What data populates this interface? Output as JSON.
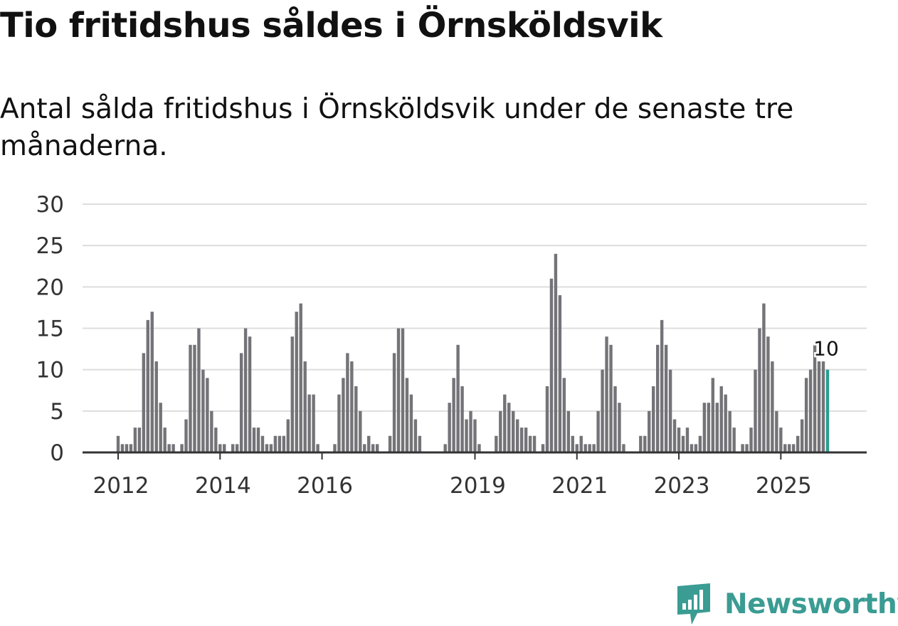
{
  "title": "Tio fritidshus såldes i Örnsköldsvik",
  "subtitle": "Antal sålda fritidshus i Örnsköldsvik under de senaste tre månaderna.",
  "brand": {
    "name": "Newsworthy",
    "color": "#3a9c93"
  },
  "chart_data": {
    "type": "bar",
    "title": "Tio fritidshus såldes i Örnsköldsvik",
    "xlabel": "",
    "ylabel": "",
    "ylim": [
      0,
      30
    ],
    "yticks": [
      0,
      5,
      10,
      15,
      20,
      25,
      30
    ],
    "grid": true,
    "xtick_labels": [
      {
        "label": "2012",
        "index": 0
      },
      {
        "label": "2014",
        "index": 24
      },
      {
        "label": "2016",
        "index": 48
      },
      {
        "label": "2019",
        "index": 84
      },
      {
        "label": "2021",
        "index": 108
      },
      {
        "label": "2023",
        "index": 132
      },
      {
        "label": "2025",
        "index": 156
      }
    ],
    "series": [
      {
        "name": "Antal sålda fritidshus",
        "start": "2012-01",
        "frequency": "monthly",
        "values": [
          2,
          1,
          1,
          1,
          3,
          3,
          12,
          16,
          17,
          11,
          6,
          3,
          1,
          1,
          0,
          1,
          4,
          13,
          13,
          15,
          10,
          9,
          5,
          3,
          1,
          1,
          0,
          1,
          1,
          12,
          15,
          14,
          3,
          3,
          2,
          1,
          1,
          2,
          2,
          2,
          4,
          14,
          17,
          18,
          11,
          7,
          7,
          1,
          0,
          0,
          0,
          1,
          7,
          9,
          12,
          11,
          8,
          5,
          1,
          2,
          1,
          1,
          0,
          0,
          2,
          12,
          15,
          15,
          9,
          7,
          4,
          2,
          0,
          0,
          0,
          0,
          0,
          1,
          6,
          9,
          13,
          8,
          4,
          5,
          4,
          1,
          0,
          0,
          0,
          2,
          5,
          7,
          6,
          5,
          4,
          3,
          3,
          2,
          2,
          0,
          1,
          8,
          21,
          24,
          19,
          9,
          5,
          2,
          1,
          2,
          1,
          1,
          1,
          5,
          10,
          14,
          13,
          8,
          6,
          1,
          0,
          0,
          0,
          2,
          2,
          5,
          8,
          13,
          16,
          13,
          10,
          4,
          3,
          2,
          3,
          1,
          1,
          2,
          6,
          6,
          9,
          6,
          8,
          7,
          5,
          3,
          0,
          1,
          1,
          3,
          10,
          15,
          18,
          14,
          11,
          5,
          3,
          1,
          1,
          1,
          2,
          4,
          9,
          10,
          13,
          11,
          11,
          10
        ]
      }
    ],
    "last_value_label": "10",
    "colors": {
      "bar": "#737378",
      "highlight": "#2a9d8f",
      "grid": "#dddddd",
      "axis": "#333333"
    }
  }
}
